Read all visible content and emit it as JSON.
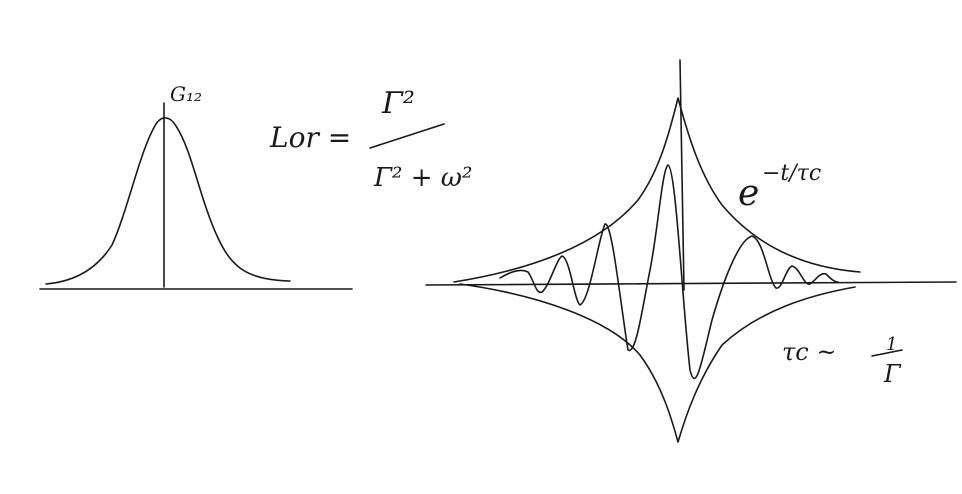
{
  "left_panel": {
    "peak_label": "G₁₂",
    "formula_lhs": "Lor =",
    "formula_numerator": "Γ²",
    "formula_denominator": "Γ² + ω²"
  },
  "right_panel": {
    "envelope_label": "e",
    "envelope_exponent": "−t/τc",
    "tau_lhs": "τc ~",
    "tau_rhs_num": "1",
    "tau_rhs_den": "Γ"
  }
}
